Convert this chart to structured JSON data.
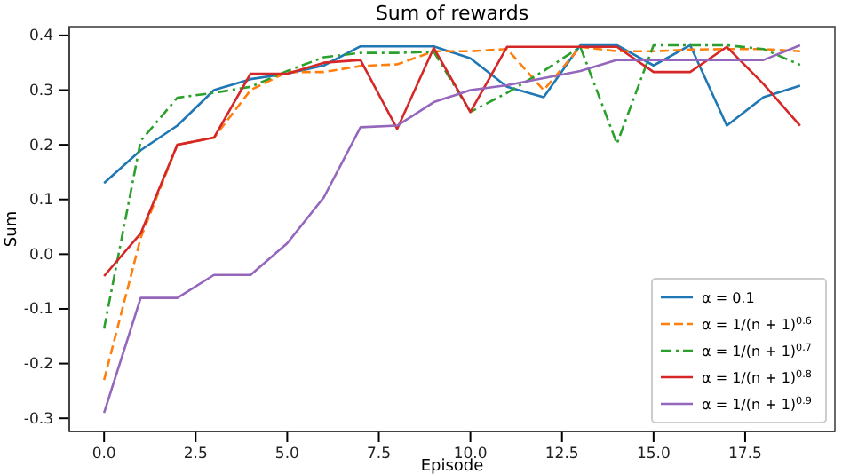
{
  "chart_data": {
    "type": "line",
    "title": "Sum of rewards",
    "xlabel": "Episode",
    "ylabel": "Sum",
    "x": [
      0,
      1,
      2,
      3,
      4,
      5,
      6,
      7,
      8,
      9,
      10,
      11,
      12,
      13,
      14,
      15,
      16,
      17,
      18,
      19
    ],
    "xlim": [
      -0.95,
      19.95
    ],
    "xticks": [
      {
        "value": 0,
        "label": "0.0"
      },
      {
        "value": 2.5,
        "label": "2.5"
      },
      {
        "value": 5,
        "label": "5.0"
      },
      {
        "value": 7.5,
        "label": "7.5"
      },
      {
        "value": 10,
        "label": "10.0"
      },
      {
        "value": 12.5,
        "label": "12.5"
      },
      {
        "value": 15,
        "label": "15.0"
      },
      {
        "value": 17.5,
        "label": "17.5"
      }
    ],
    "ylim": [
      -0.324,
      0.416
    ],
    "yticks": [
      -0.3,
      -0.2,
      -0.1,
      {
        "value": 0,
        "label": "0.0"
      },
      0.1,
      0.2,
      0.3,
      0.4
    ],
    "legend": "bottom right",
    "grid": false,
    "series": [
      {
        "name": "α = 0.1",
        "color": "#1f77b4",
        "line_style": "solid",
        "values": [
          0.13,
          0.19,
          0.235,
          0.3,
          0.32,
          0.33,
          0.345,
          0.38,
          0.38,
          0.38,
          0.358,
          0.306,
          0.287,
          0.382,
          0.382,
          0.345,
          0.382,
          0.235,
          0.287,
          0.308
        ]
      },
      {
        "name": "α = 1/(n + 1)$^{0.6}$",
        "color": "#ff7f0e",
        "line_style": "dashed",
        "values": [
          -0.23,
          0.03,
          0.2,
          0.213,
          0.3,
          0.333,
          0.333,
          0.344,
          0.347,
          0.371,
          0.371,
          0.375,
          0.3,
          0.379,
          0.371,
          0.371,
          0.374,
          0.375,
          0.375,
          0.371
        ]
      },
      {
        "name": "α = 1/(n + 1)$^{0.7}$",
        "color": "#2ca02c",
        "line_style": "dashdot",
        "values": [
          -0.136,
          0.207,
          0.286,
          0.295,
          0.306,
          0.335,
          0.36,
          0.368,
          0.368,
          0.37,
          0.26,
          0.295,
          0.335,
          0.379,
          0.202,
          0.382,
          0.382,
          0.382,
          0.375,
          0.346
        ]
      },
      {
        "name": "α = 1/(n + 1)$^{0.8}$",
        "color": "#d62728",
        "line_style": "solid",
        "values": [
          -0.04,
          0.038,
          0.2,
          0.213,
          0.33,
          0.33,
          0.35,
          0.355,
          0.229,
          0.377,
          0.26,
          0.379,
          0.379,
          0.379,
          0.379,
          0.333,
          0.333,
          0.379,
          0.311,
          0.235
        ]
      },
      {
        "name": "α = 1/(n + 1)$^{0.9}$",
        "color": "#9467bd",
        "line_style": "solid",
        "values": [
          -0.29,
          -0.08,
          -0.08,
          -0.038,
          -0.038,
          0.02,
          0.104,
          0.232,
          0.235,
          0.278,
          0.3,
          0.309,
          0.322,
          0.335,
          0.355,
          0.355,
          0.355,
          0.355,
          0.355,
          0.382
        ]
      }
    ]
  }
}
